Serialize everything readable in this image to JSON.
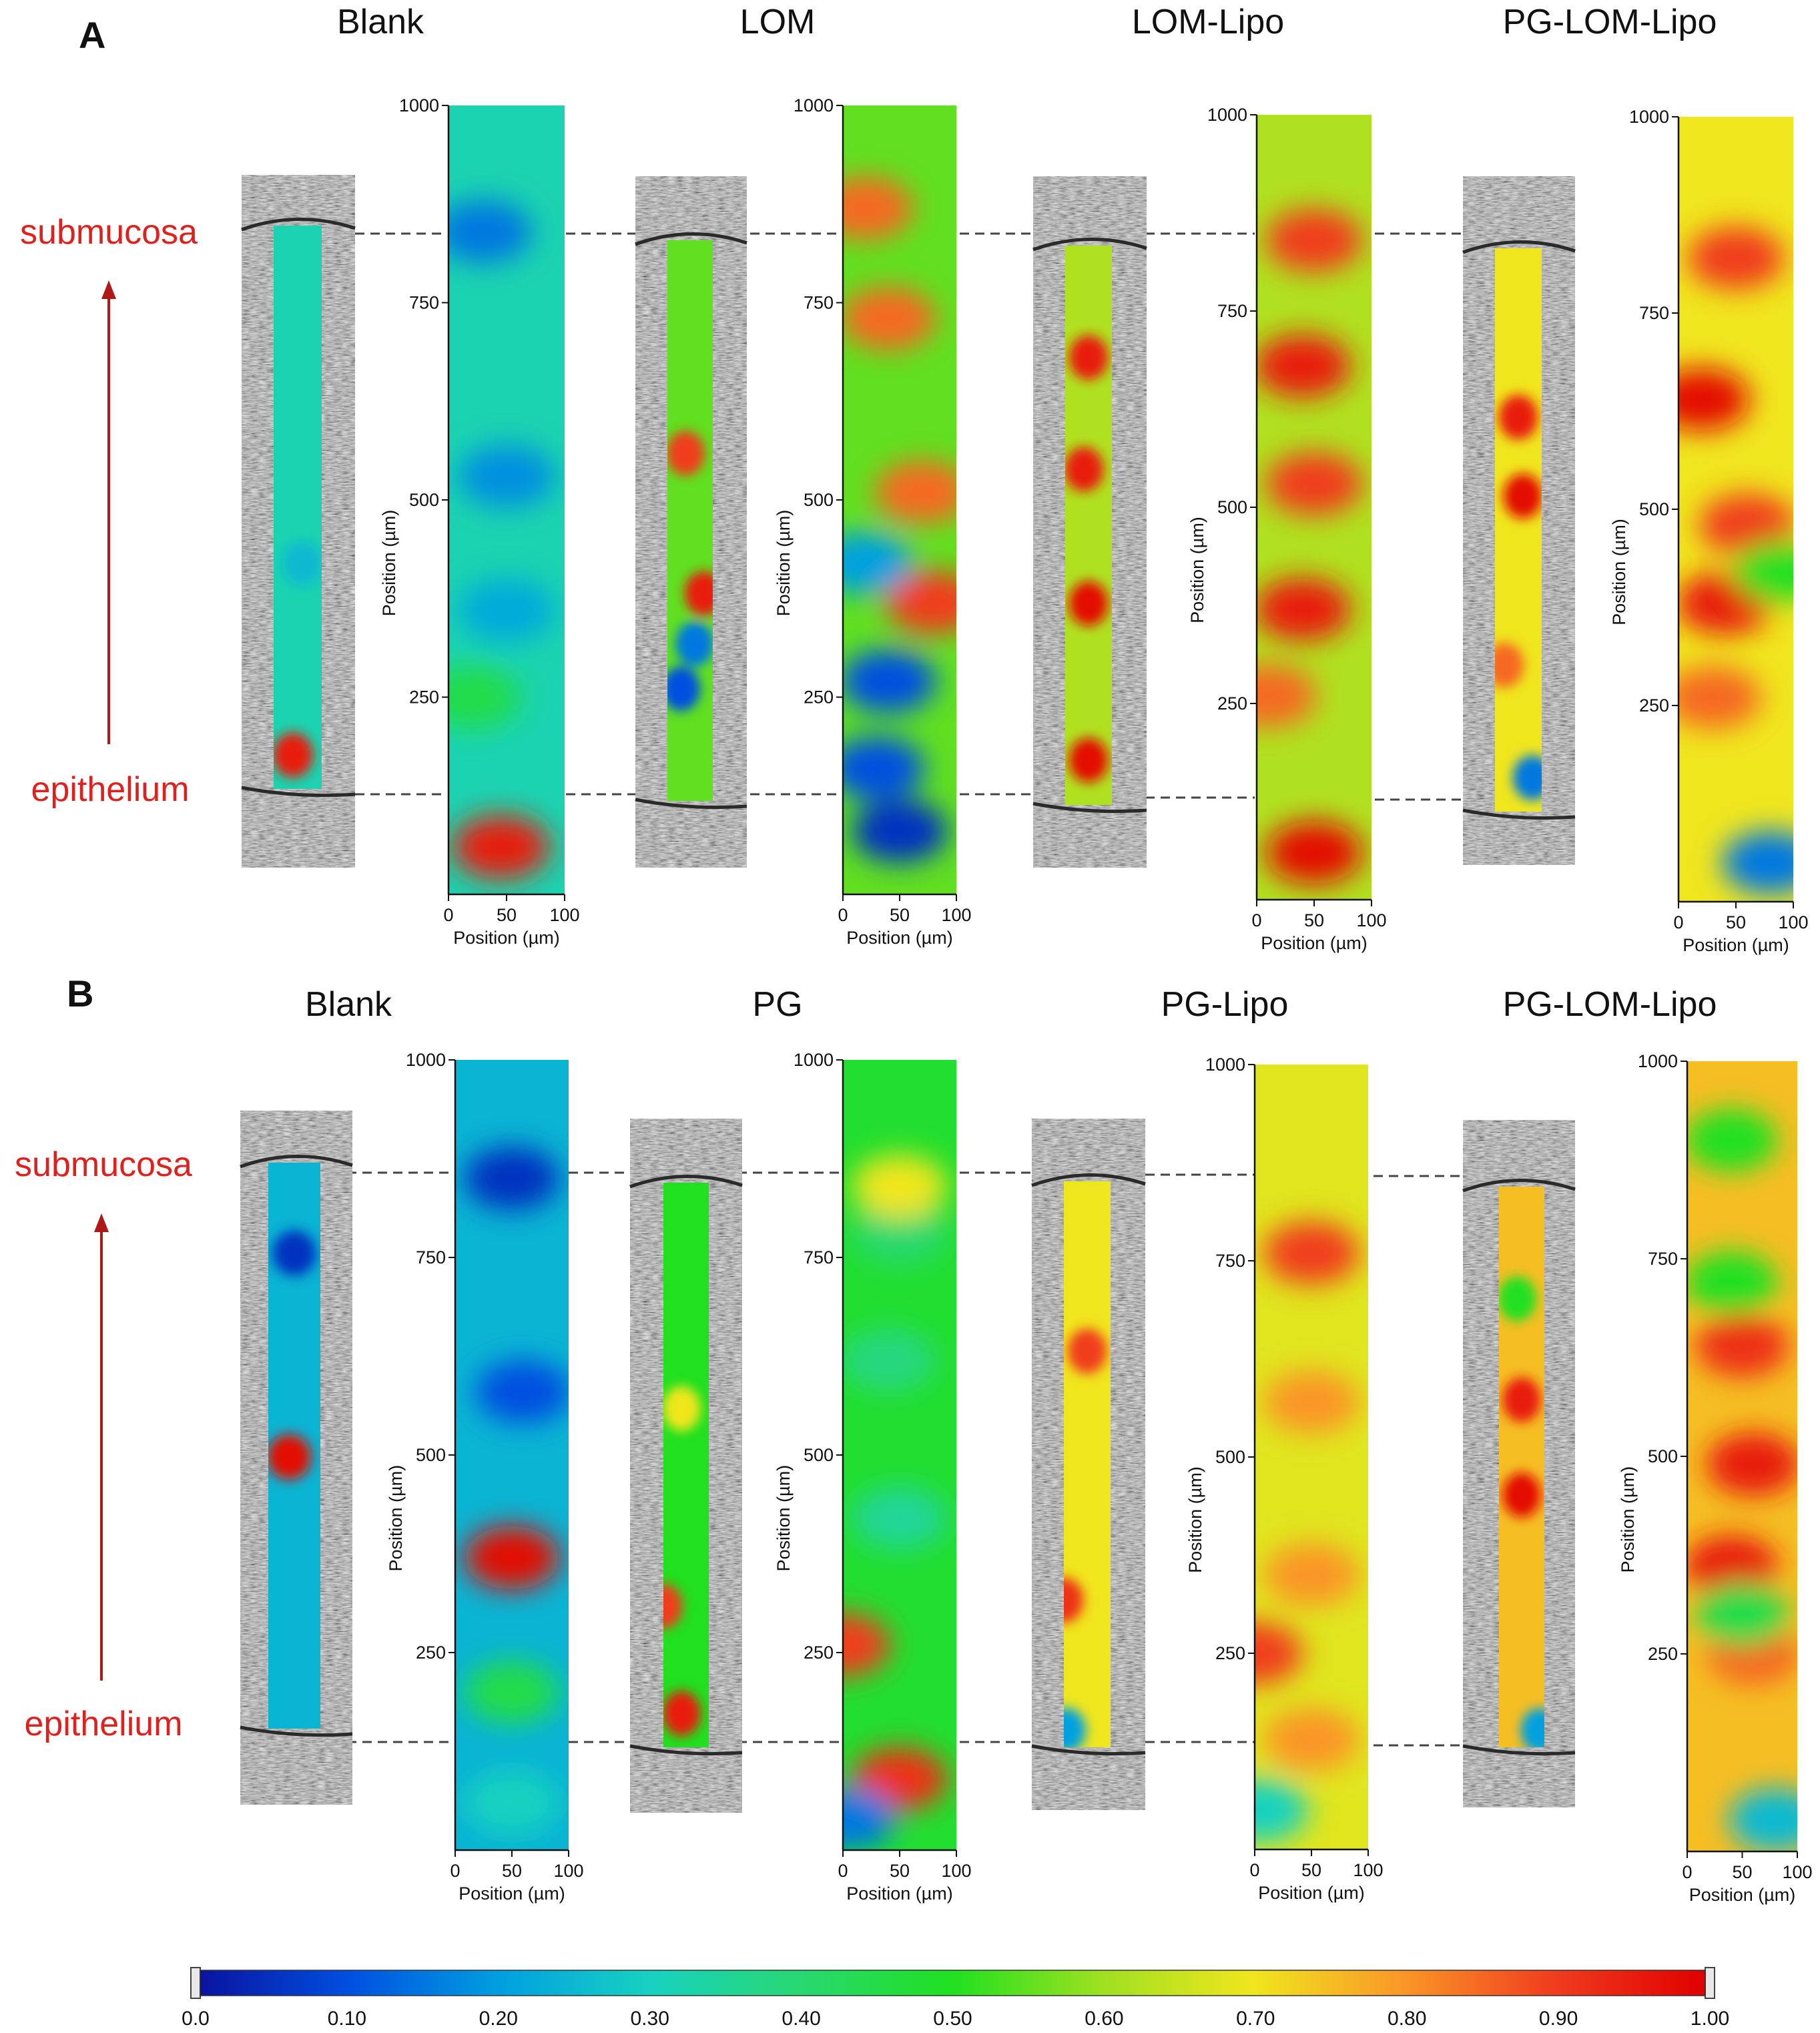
{
  "figure": {
    "panel_a": {
      "label": "A",
      "titles": [
        "Blank",
        "LOM",
        "LOM-Lipo",
        "PG-LOM-Lipo"
      ]
    },
    "panel_b": {
      "label": "B",
      "titles": [
        "Blank",
        "PG",
        "PG-Lipo",
        "PG-LOM-Lipo"
      ]
    },
    "side_labels": {
      "top": "submucosa",
      "bottom": "epithelium"
    },
    "colors": {
      "side_label": "#e0201c",
      "arrow": "#b01818",
      "dash": "#444444"
    }
  },
  "chart_data": {
    "type": "heatmap",
    "xlabel": "Position (µm)",
    "ylabel": "Position (µm)",
    "x_ticks": [
      0,
      50,
      100
    ],
    "y_ticks": [
      1000,
      750,
      500,
      250
    ],
    "xlim": [
      0,
      100
    ],
    "ylim": [
      0,
      1000
    ],
    "colorbar": {
      "ticks": [
        "0.0",
        "0.10",
        "0.20",
        "0.30",
        "0.40",
        "0.50",
        "0.60",
        "0.70",
        "0.80",
        "0.90",
        "1.00"
      ],
      "range": [
        0,
        1
      ],
      "colors": [
        "#0a14a0",
        "#0050e0",
        "#00a0e0",
        "#18d2c0",
        "#28d870",
        "#20e020",
        "#a0e020",
        "#f0e61e",
        "#fa9628",
        "#f03c1e",
        "#e00000"
      ]
    },
    "panels": [
      {
        "name": "A-Blank",
        "base": 0.32,
        "peaks": [
          [
            45,
            60,
            0.95
          ],
          [
            50,
            360,
            0.22
          ],
          [
            50,
            530,
            0.18
          ],
          [
            30,
            840,
            0.15
          ],
          [
            20,
            250,
            0.45
          ]
        ]
      },
      {
        "name": "A-LOM",
        "base": 0.55,
        "peaks": [
          [
            50,
            80,
            0.05
          ],
          [
            30,
            160,
            0.1
          ],
          [
            40,
            270,
            0.1
          ],
          [
            80,
            370,
            0.9
          ],
          [
            70,
            510,
            0.85
          ],
          [
            40,
            730,
            0.85
          ],
          [
            20,
            870,
            0.85
          ],
          [
            20,
            420,
            0.2
          ]
        ]
      },
      {
        "name": "A-LOM-Lipo",
        "base": 0.62,
        "peaks": [
          [
            50,
            60,
            0.98
          ],
          [
            40,
            370,
            0.95
          ],
          [
            50,
            530,
            0.9
          ],
          [
            40,
            680,
            0.95
          ],
          [
            50,
            840,
            0.9
          ],
          [
            10,
            260,
            0.85
          ]
        ]
      },
      {
        "name": "A-PG-LOM-Lipo",
        "base": 0.7,
        "peaks": [
          [
            80,
            50,
            0.15
          ],
          [
            40,
            380,
            0.95
          ],
          [
            60,
            480,
            0.9
          ],
          [
            20,
            640,
            0.98
          ],
          [
            50,
            820,
            0.9
          ],
          [
            90,
            420,
            0.5
          ],
          [
            30,
            260,
            0.85
          ]
        ]
      },
      {
        "name": "B-Blank",
        "base": 0.24,
        "peaks": [
          [
            50,
            370,
            0.98
          ],
          [
            50,
            850,
            0.05
          ],
          [
            60,
            580,
            0.1
          ],
          [
            50,
            60,
            0.3
          ],
          [
            50,
            200,
            0.45
          ]
        ]
      },
      {
        "name": "B-PG",
        "base": 0.48,
        "peaks": [
          [
            50,
            90,
            0.92
          ],
          [
            0,
            260,
            0.9
          ],
          [
            5,
            40,
            0.15
          ],
          [
            50,
            420,
            0.35
          ],
          [
            40,
            620,
            0.38
          ],
          [
            50,
            780,
            0.4
          ],
          [
            50,
            840,
            0.7
          ]
        ]
      },
      {
        "name": "B-PG-Lipo",
        "base": 0.68,
        "peaks": [
          [
            50,
            760,
            0.9
          ],
          [
            0,
            250,
            0.9
          ],
          [
            50,
            350,
            0.8
          ],
          [
            50,
            570,
            0.8
          ],
          [
            5,
            50,
            0.3
          ],
          [
            50,
            140,
            0.8
          ]
        ]
      },
      {
        "name": "B-PG-LOM-Lipo",
        "base": 0.75,
        "peaks": [
          [
            40,
            360,
            0.95
          ],
          [
            60,
            490,
            0.95
          ],
          [
            50,
            640,
            0.92
          ],
          [
            40,
            720,
            0.5
          ],
          [
            60,
            250,
            0.85
          ],
          [
            80,
            40,
            0.25
          ],
          [
            40,
            900,
            0.5
          ],
          [
            50,
            300,
            0.45
          ]
        ]
      }
    ],
    "thumbnails": [
      {
        "name": "A-Blank",
        "base": 0.32,
        "peaks": [
          [
            40,
            60,
            0.95
          ],
          [
            60,
            400,
            0.25
          ]
        ]
      },
      {
        "name": "A-LOM",
        "base": 0.55,
        "peaks": [
          [
            80,
            370,
            0.95
          ],
          [
            40,
            620,
            0.9
          ],
          [
            30,
            200,
            0.1
          ],
          [
            60,
            280,
            0.15
          ]
        ]
      },
      {
        "name": "A-LOM-Lipo",
        "base": 0.62,
        "peaks": [
          [
            50,
            80,
            0.98
          ],
          [
            50,
            360,
            0.98
          ],
          [
            40,
            600,
            0.95
          ],
          [
            50,
            800,
            0.95
          ]
        ]
      },
      {
        "name": "A-PG-LOM-Lipo",
        "base": 0.7,
        "peaks": [
          [
            60,
            560,
            0.98
          ],
          [
            20,
            260,
            0.85
          ],
          [
            80,
            60,
            0.15
          ],
          [
            50,
            700,
            0.95
          ]
        ]
      },
      {
        "name": "B-Blank",
        "base": 0.24,
        "peaks": [
          [
            40,
            480,
            0.98
          ],
          [
            50,
            840,
            0.05
          ]
        ]
      },
      {
        "name": "B-PG",
        "base": 0.5,
        "peaks": [
          [
            40,
            60,
            0.95
          ],
          [
            0,
            250,
            0.9
          ],
          [
            40,
            600,
            0.7
          ]
        ]
      },
      {
        "name": "B-PG-Lipo",
        "base": 0.7,
        "peaks": [
          [
            50,
            700,
            0.9
          ],
          [
            0,
            260,
            0.92
          ],
          [
            5,
            30,
            0.2
          ]
        ]
      },
      {
        "name": "B-PG-LOM-Lipo",
        "base": 0.75,
        "peaks": [
          [
            50,
            450,
            0.98
          ],
          [
            50,
            620,
            0.95
          ],
          [
            90,
            30,
            0.2
          ],
          [
            40,
            800,
            0.5
          ]
        ]
      }
    ]
  }
}
